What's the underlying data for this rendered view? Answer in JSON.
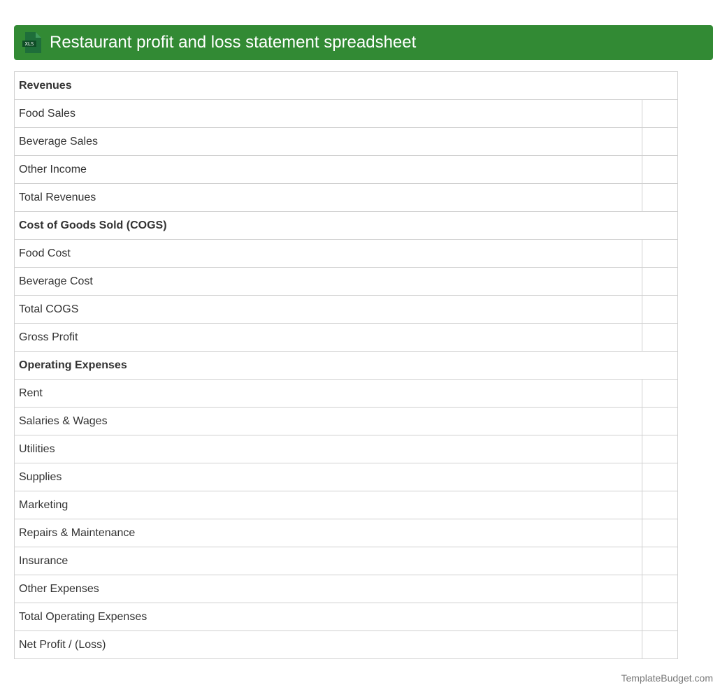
{
  "header": {
    "title": "Restaurant profit and loss statement spreadsheet",
    "icon": "xls-file-icon",
    "icon_label": "XLS",
    "color": "#328a34"
  },
  "rows": [
    {
      "label": "Revenues",
      "section": true
    },
    {
      "label": "Food Sales"
    },
    {
      "label": "Beverage Sales"
    },
    {
      "label": "Other Income"
    },
    {
      "label": "Total Revenues"
    },
    {
      "label": "Cost of Goods Sold (COGS)",
      "section": true
    },
    {
      "label": "Food Cost"
    },
    {
      "label": "Beverage Cost"
    },
    {
      "label": "Total COGS"
    },
    {
      "label": "Gross Profit"
    },
    {
      "label": "Operating Expenses",
      "section": true
    },
    {
      "label": "Rent"
    },
    {
      "label": "Salaries & Wages"
    },
    {
      "label": "Utilities"
    },
    {
      "label": "Supplies"
    },
    {
      "label": "Marketing"
    },
    {
      "label": "Repairs & Maintenance"
    },
    {
      "label": "Insurance"
    },
    {
      "label": "Other Expenses"
    },
    {
      "label": "Total Operating Expenses"
    },
    {
      "label": "Net Profit / (Loss)"
    }
  ],
  "footer": "TemplateBudget.com"
}
